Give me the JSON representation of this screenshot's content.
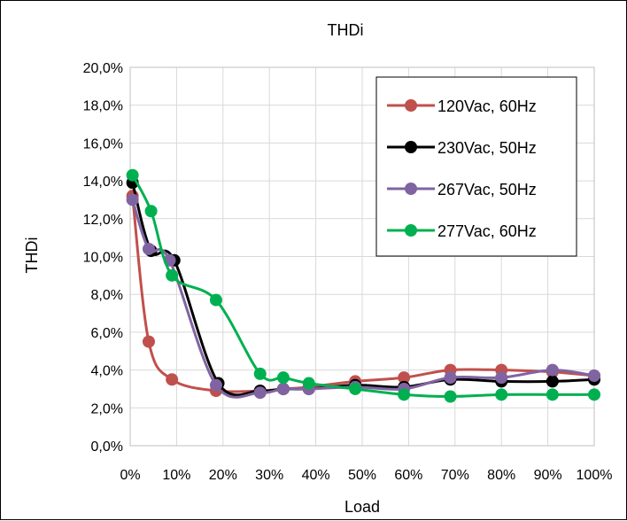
{
  "chart_data": {
    "type": "line",
    "title": "THDi",
    "xlabel": "Load",
    "ylabel": "THDi",
    "xlim": [
      0,
      100
    ],
    "ylim": [
      0,
      20
    ],
    "x_ticks": [
      "0%",
      "10%",
      "20%",
      "30%",
      "40%",
      "50%",
      "60%",
      "70%",
      "80%",
      "90%",
      "100%"
    ],
    "y_ticks": [
      "0,0%",
      "2,0%",
      "4,0%",
      "6,0%",
      "8,0%",
      "10,0%",
      "12,0%",
      "14,0%",
      "16,0%",
      "18,0%",
      "20,0%"
    ],
    "grid": true,
    "legend_position": "top-right",
    "series": [
      {
        "name": "120Vac, 60Hz",
        "color": "#c0504d",
        "x": [
          0.5,
          4,
          9,
          18.5,
          28,
          33,
          38.5,
          48.5,
          59,
          69,
          80,
          91,
          100
        ],
        "y": [
          13.2,
          5.5,
          3.5,
          2.9,
          2.9,
          3.0,
          3.1,
          3.4,
          3.6,
          4.0,
          4.0,
          3.9,
          3.7
        ]
      },
      {
        "name": "230Vac, 50Hz",
        "color": "#000000",
        "x": [
          0.5,
          4.5,
          9.5,
          19,
          28,
          33,
          38.5,
          48.5,
          59,
          69,
          80,
          91,
          100
        ],
        "y": [
          13.9,
          10.3,
          9.8,
          3.3,
          2.9,
          3.0,
          3.0,
          3.2,
          3.1,
          3.5,
          3.4,
          3.4,
          3.5
        ]
      },
      {
        "name": "267Vac, 50Hz",
        "color": "#8064a2",
        "x": [
          0.5,
          4,
          8.5,
          18.5,
          28,
          33,
          38.5,
          48.5,
          59,
          69,
          80,
          91,
          100
        ],
        "y": [
          13.0,
          10.4,
          9.8,
          3.2,
          2.8,
          3.0,
          3.0,
          3.1,
          3.0,
          3.6,
          3.6,
          4.0,
          3.7
        ]
      },
      {
        "name": "277Vac, 60Hz",
        "color": "#00b050",
        "x": [
          0.5,
          4.5,
          9,
          18.5,
          28,
          33,
          38.5,
          48.5,
          59,
          69,
          80,
          91,
          100
        ],
        "y": [
          14.3,
          12.4,
          9.0,
          7.7,
          3.8,
          3.6,
          3.3,
          3.0,
          2.7,
          2.6,
          2.7,
          2.7,
          2.7
        ]
      }
    ]
  }
}
